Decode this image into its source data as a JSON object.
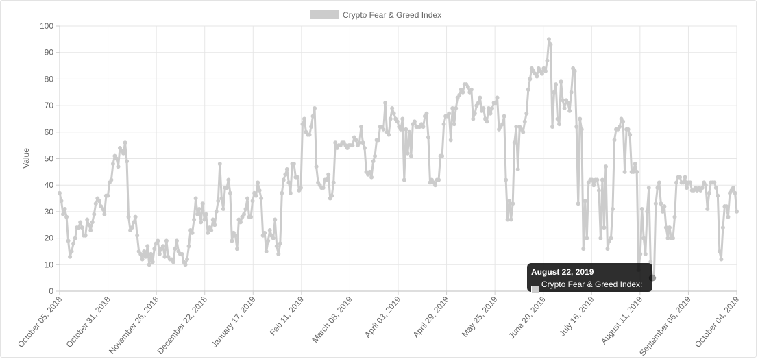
{
  "chart_data": {
    "type": "line",
    "title": "",
    "xlabel": "",
    "ylabel": "Value",
    "ylim": [
      0,
      100
    ],
    "grid": true,
    "legend_position": "top-center",
    "series": [
      {
        "name": "Crypto Fear & Greed Index",
        "color": "#cccccc",
        "x_start": "2018-10-05",
        "x_end": "2019-10-04",
        "values": [
          37,
          34,
          29,
          31,
          28,
          19,
          13,
          15,
          18,
          20,
          24,
          24,
          26,
          24,
          21,
          21,
          27,
          25,
          23,
          26,
          29,
          33,
          35,
          34,
          32,
          31,
          29,
          36,
          36,
          41,
          42,
          48,
          51,
          50,
          47,
          54,
          53,
          52,
          56,
          49,
          28,
          23,
          24,
          26,
          28,
          21,
          15,
          14,
          12,
          15,
          13,
          17,
          10,
          14,
          11,
          16,
          18,
          19,
          14,
          16,
          17,
          13,
          19,
          13,
          12,
          12,
          11,
          16,
          19,
          15,
          14,
          14,
          11,
          10,
          12,
          17,
          23,
          22,
          27,
          35,
          29,
          31,
          26,
          33,
          27,
          29,
          22,
          24,
          23,
          27,
          25,
          30,
          34,
          48,
          35,
          31,
          39,
          39,
          42,
          37,
          19,
          22,
          21,
          16,
          27,
          26,
          28,
          29,
          31,
          35,
          28,
          28,
          34,
          37,
          36,
          41,
          38,
          35,
          21,
          22,
          15,
          19,
          23,
          21,
          20,
          27,
          17,
          14,
          18,
          37,
          42,
          44,
          46,
          41,
          37,
          48,
          48,
          43,
          43,
          38,
          39,
          63,
          65,
          60,
          59,
          59,
          62,
          66,
          69,
          47,
          41,
          40,
          39,
          39,
          42,
          42,
          44,
          35,
          36,
          41,
          56,
          54,
          55,
          55,
          56,
          56,
          55,
          54,
          55,
          55,
          55,
          58,
          57,
          55,
          56,
          62,
          56,
          54,
          45,
          44,
          45,
          43,
          49,
          51,
          57,
          57,
          62,
          62,
          61,
          71,
          60,
          59,
          65,
          69,
          67,
          65,
          64,
          62,
          61,
          65,
          42,
          61,
          52,
          60,
          51,
          63,
          64,
          62,
          62,
          62,
          63,
          62,
          66,
          67,
          58,
          41,
          42,
          41,
          40,
          42,
          42,
          51,
          51,
          63,
          66,
          66,
          67,
          57,
          69,
          63,
          69,
          73,
          74,
          76,
          75,
          78,
          78,
          77,
          75,
          76,
          65,
          67,
          70,
          71,
          73,
          68,
          69,
          65,
          64,
          69,
          67,
          69,
          71,
          71,
          73,
          61,
          62,
          63,
          66,
          42,
          27,
          34,
          27,
          33,
          56,
          62,
          46,
          62,
          61,
          60,
          64,
          67,
          76,
          80,
          84,
          83,
          82,
          81,
          84,
          83,
          82,
          84,
          83,
          87,
          95,
          93,
          62,
          75,
          78,
          65,
          63,
          79,
          72,
          69,
          72,
          71,
          68,
          75,
          84,
          83,
          62,
          33,
          65,
          61,
          16,
          34,
          20,
          41,
          42,
          42,
          40,
          42,
          42,
          38,
          20,
          42,
          24,
          47,
          16,
          19,
          20,
          31,
          57,
          61,
          61,
          62,
          65,
          64,
          45,
          61,
          61,
          59,
          45,
          45,
          48,
          45,
          8,
          14,
          31,
          20,
          14,
          30,
          39,
          11,
          5,
          5,
          33,
          39,
          41,
          33,
          30,
          32,
          24,
          20,
          24,
          20,
          20,
          28,
          41,
          43,
          43,
          41,
          41,
          43,
          39,
          41,
          41,
          38,
          38,
          39,
          38,
          39,
          38,
          39,
          41,
          40,
          31,
          37,
          41,
          41,
          41,
          39,
          36,
          15,
          12,
          24,
          32,
          32,
          28,
          37,
          38,
          39,
          37,
          30
        ]
      }
    ],
    "x_tick_labels": [
      "October 05, 2018",
      "October 31, 2018",
      "November 26, 2018",
      "December 22, 2018",
      "January 17, 2019",
      "Feb 11, 2019",
      "March 08, 2019",
      "April 03, 2019",
      "April 29, 2019",
      "May 25, 2019",
      "June 20, 2019",
      "July 16, 2019",
      "August 11, 2019",
      "September 06, 2019",
      "October 04, 2019"
    ],
    "y_ticks": [
      0,
      10,
      20,
      30,
      40,
      50,
      60,
      70,
      80,
      90,
      100
    ]
  },
  "legend": {
    "label": "Crypto Fear & Greed Index"
  },
  "tooltip": {
    "title": "August 22, 2019",
    "label": "Crypto Fear & Greed Index: 5",
    "value": 5
  }
}
